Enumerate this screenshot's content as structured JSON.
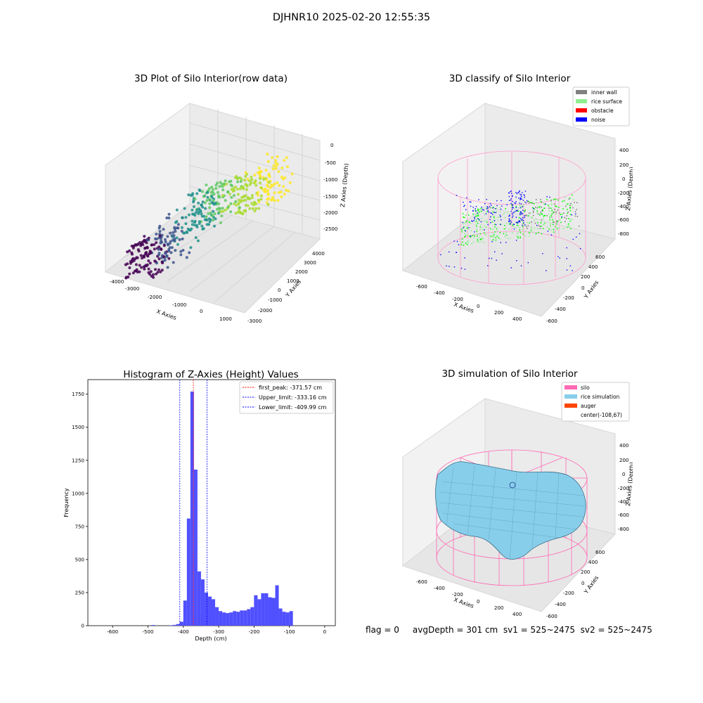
{
  "suptitle": "DJHNR10 2025-02-20 12:55:35",
  "footer": "flag = 0     avgDepth = 301 cm  sv1 = 525~2475  sv2 = 525~2475",
  "chart_data": [
    {
      "type": "scatter",
      "title": "3D Plot of Silo Interior(row data)",
      "xlabel": "X Axies",
      "ylabel": "Y Axies",
      "zlabel": "Z Axies (Depth)",
      "x_ticks": [
        "-4000",
        "-3000",
        "-2000",
        "-1000",
        "0",
        "1000"
      ],
      "y_ticks": [
        "-3000",
        "-2000",
        "-1000",
        "0",
        "1000",
        "2000",
        "3000",
        "4000"
      ],
      "z_ticks": [
        "0",
        "-500",
        "-1000",
        "-1500",
        "-2000",
        "-2500"
      ],
      "colormap": "viridis"
    },
    {
      "type": "scatter",
      "title": "3D classify of Silo Interior",
      "xlabel": "X Axies",
      "ylabel": "Y Axies",
      "zlabel": "Z Axies (Depth)",
      "x_ticks": [
        "-600",
        "-400",
        "-200",
        "0",
        "200",
        "400"
      ],
      "y_ticks": [
        "-600",
        "-400",
        "-200",
        "0",
        "200",
        "400",
        "600"
      ],
      "z_ticks": [
        "400",
        "200",
        "0",
        "-200",
        "-400",
        "-600",
        "-800"
      ],
      "legend": [
        {
          "name": "inner wall",
          "color": "#808080"
        },
        {
          "name": "rice surface",
          "color": "#90ee90"
        },
        {
          "name": "obstacle",
          "color": "#ff0000"
        },
        {
          "name": "noise",
          "color": "#0000ff"
        }
      ],
      "legend_position": "top-right"
    },
    {
      "type": "bar",
      "title": "Histogram of Z-Axies (Height) Values",
      "xlabel": "Depth (cm)",
      "ylabel": "Frequency",
      "xlim": [
        -670,
        30
      ],
      "ylim": [
        0,
        1860
      ],
      "x_ticks": [
        -600,
        -500,
        -400,
        -300,
        -200,
        -100,
        0
      ],
      "y_ticks": [
        0,
        250,
        500,
        750,
        1000,
        1250,
        1500,
        1750
      ],
      "bin_width": 10,
      "bins": [
        {
          "x": -490,
          "y": 5
        },
        {
          "x": -440,
          "y": 3
        },
        {
          "x": -430,
          "y": 6
        },
        {
          "x": -420,
          "y": 12
        },
        {
          "x": -410,
          "y": 30
        },
        {
          "x": -400,
          "y": 190
        },
        {
          "x": -390,
          "y": 810
        },
        {
          "x": -380,
          "y": 1770
        },
        {
          "x": -370,
          "y": 1180
        },
        {
          "x": -360,
          "y": 410
        },
        {
          "x": -350,
          "y": 350
        },
        {
          "x": -340,
          "y": 250
        },
        {
          "x": -330,
          "y": 220
        },
        {
          "x": -320,
          "y": 200
        },
        {
          "x": -310,
          "y": 140
        },
        {
          "x": -300,
          "y": 110
        },
        {
          "x": -290,
          "y": 100
        },
        {
          "x": -280,
          "y": 95
        },
        {
          "x": -270,
          "y": 100
        },
        {
          "x": -260,
          "y": 110
        },
        {
          "x": -250,
          "y": 105
        },
        {
          "x": -240,
          "y": 115
        },
        {
          "x": -230,
          "y": 115
        },
        {
          "x": -220,
          "y": 125
        },
        {
          "x": -210,
          "y": 140
        },
        {
          "x": -200,
          "y": 230
        },
        {
          "x": -190,
          "y": 200
        },
        {
          "x": -180,
          "y": 245
        },
        {
          "x": -170,
          "y": 245
        },
        {
          "x": -160,
          "y": 215
        },
        {
          "x": -150,
          "y": 210
        },
        {
          "x": -140,
          "y": 305
        },
        {
          "x": -130,
          "y": 130
        },
        {
          "x": -120,
          "y": 105
        },
        {
          "x": -110,
          "y": 100
        },
        {
          "x": -100,
          "y": 110
        }
      ],
      "bar_color": "#5050ff",
      "vlines": [
        {
          "label": "first_peak: -371.57 cm",
          "x": -371.57,
          "color": "#ff0000"
        },
        {
          "label": "Upper_limit: -333.16 cm",
          "x": -333.16,
          "color": "#0000ff"
        },
        {
          "label": "Lower_limit: -409.99 cm",
          "x": -409.99,
          "color": "#0000ff"
        }
      ],
      "legend_position": "top-right"
    },
    {
      "type": "area",
      "title": "3D simulation of Silo Interior",
      "xlabel": "X Axies",
      "ylabel": "Y Axies",
      "zlabel": "Z Axies (Depth)",
      "x_ticks": [
        "-600",
        "-400",
        "-200",
        "0",
        "200",
        "400"
      ],
      "y_ticks": [
        "-600",
        "-400",
        "-200",
        "0",
        "200",
        "400",
        "600"
      ],
      "z_ticks": [
        "400",
        "200",
        "0",
        "-200",
        "-400",
        "-600",
        "-800"
      ],
      "legend": [
        {
          "name": "silo",
          "color": "#ff69b4"
        },
        {
          "name": "rice simulation",
          "color": "#87ceeb"
        },
        {
          "name": "auger",
          "color": "#ff4500"
        },
        {
          "name": "center(-108,67)",
          "color": ""
        }
      ],
      "legend_position": "top-right"
    }
  ]
}
